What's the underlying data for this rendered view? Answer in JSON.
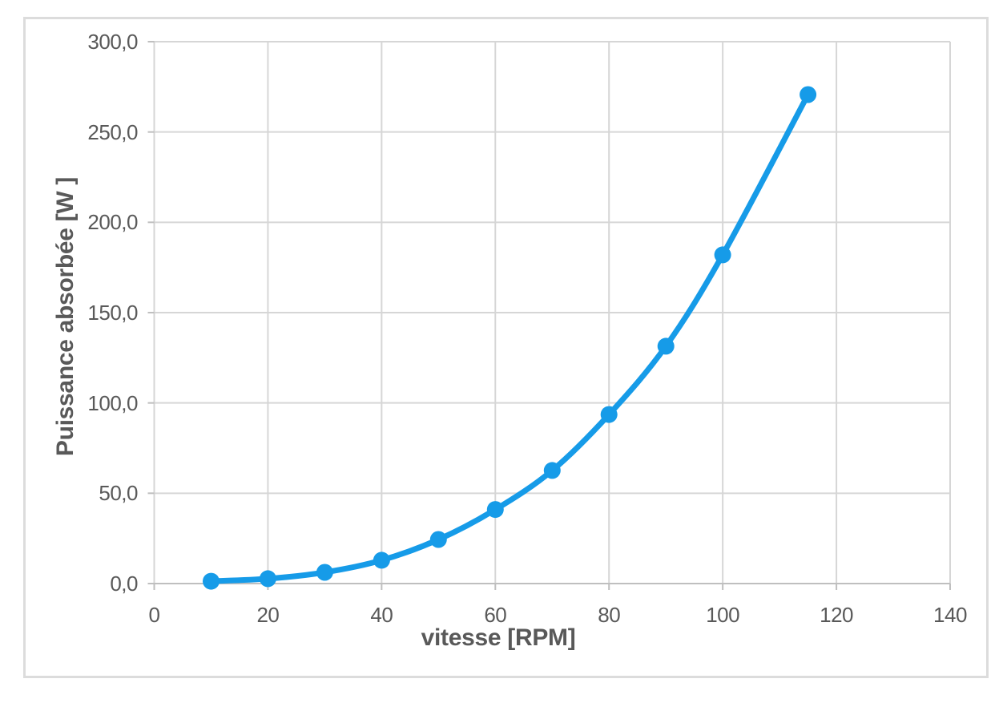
{
  "chart_data": {
    "type": "line",
    "title": "",
    "xlabel": "vitesse [RPM]",
    "ylabel": "Puissance absorbée [W ]",
    "x": [
      10,
      20,
      30,
      40,
      50,
      60,
      70,
      80,
      90,
      100,
      115
    ],
    "y": [
      1.3,
      2.7,
      6.2,
      12.9,
      24.4,
      41.0,
      62.6,
      93.6,
      131.4,
      182.0,
      270.7
    ],
    "xlim": [
      0,
      140
    ],
    "ylim": [
      0,
      300
    ],
    "x_ticks": [
      0,
      20,
      40,
      60,
      80,
      100,
      120,
      140
    ],
    "x_tick_labels": [
      "0",
      "20",
      "40",
      "60",
      "80",
      "100",
      "120",
      "140"
    ],
    "y_ticks": [
      0,
      50,
      100,
      150,
      200,
      250,
      300
    ],
    "y_tick_labels": [
      "0,0",
      "50,0",
      "100,0",
      "150,0",
      "200,0",
      "250,0",
      "300,0"
    ],
    "grid": true,
    "legend": false,
    "smooth": true,
    "marker": "circle",
    "colors": {
      "line": "#169BE8",
      "marker": "#169BE8",
      "text": "#595959",
      "grid": "#d6d6d6",
      "axis": "#bfbfbf",
      "frame": "#dcdcdc",
      "background": "#ffffff"
    }
  }
}
